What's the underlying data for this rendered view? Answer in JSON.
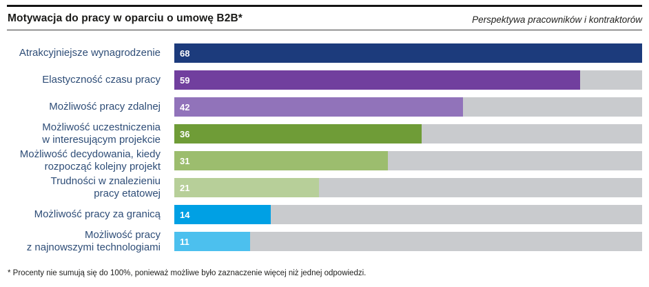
{
  "header": {
    "title": "Motywacja do pracy w oparciu o umowę B2B*",
    "subtitle": "Perspektywa pracowników i kontraktorów"
  },
  "footnote": "* Procenty nie sumują się do 100%, ponieważ możliwe było zaznaczenie więcej niż jednej odpowiedzi.",
  "chart_data": {
    "type": "bar",
    "orientation": "horizontal",
    "title": "Motywacja do pracy w oparciu o umowę B2B*",
    "subtitle": "Perspektywa pracowników i kontraktorów",
    "unit": "percent",
    "xlim": [
      0,
      68
    ],
    "grid": false,
    "legend": false,
    "categories": [
      "Atrakcyjniejsze wynagrodzenie",
      "Elastyczność czasu pracy",
      "Możliwość pracy zdalnej",
      "Możliwość uczestniczenia w interesującym projekcie",
      "Możliwość decydowania, kiedy rozpocząć kolejny projekt",
      "Trudności w znalezieniu pracy etatowej",
      "Możliwość pracy za granicą",
      "Możliwość pracy z najnowszymi technologiami"
    ],
    "label_lines": [
      [
        "Atrakcyjniejsze wynagrodzenie"
      ],
      [
        "Elastyczność czasu pracy"
      ],
      [
        "Możliwość pracy zdalnej"
      ],
      [
        "Możliwość uczestniczenia",
        "w interesującym projekcie"
      ],
      [
        "Możliwość decydowania, kiedy",
        "rozpocząć kolejny projekt"
      ],
      [
        "Trudności w znalezieniu",
        "pracy etatowej"
      ],
      [
        "Możliwość pracy za granicą"
      ],
      [
        "Możliwość pracy",
        "z najnowszymi technologiami"
      ]
    ],
    "values": [
      68,
      59,
      42,
      36,
      31,
      21,
      14,
      11
    ],
    "bar_colors": [
      "#1c3b7c",
      "#713f9e",
      "#9173ba",
      "#6f9c37",
      "#9cbd6e",
      "#b7cf99",
      "#00a0e4",
      "#4cc0ee"
    ],
    "track_color": "#c9cbce",
    "value_label_color": "#ffffff",
    "category_label_color": "#2e4d77"
  }
}
